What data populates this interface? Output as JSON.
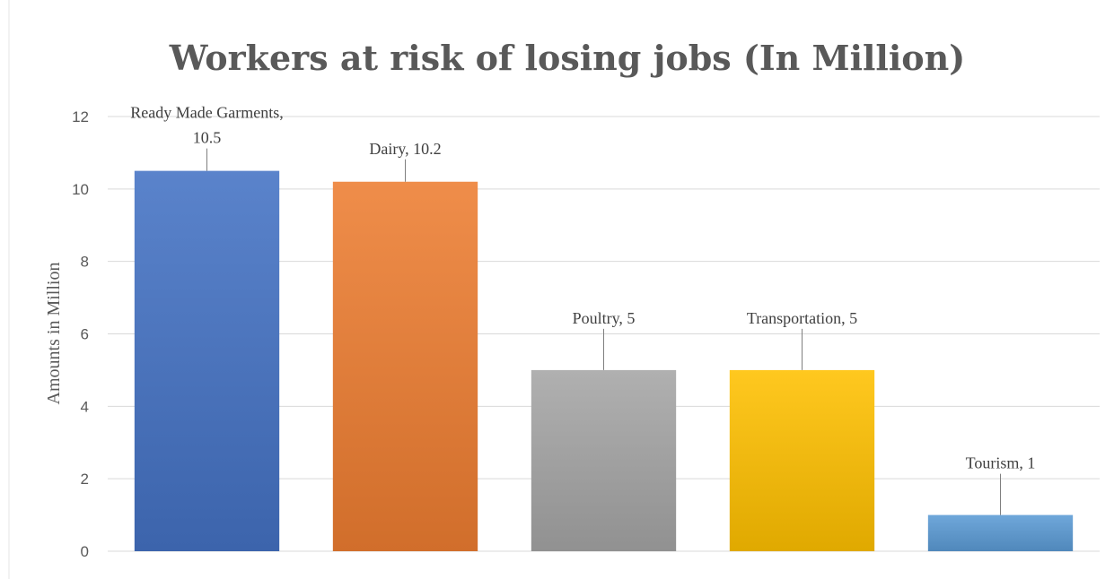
{
  "chart_data": {
    "type": "bar",
    "title": "Workers at risk of losing jobs (In Million)",
    "xlabel": "",
    "ylabel": "Amounts in Million",
    "ylim": [
      0,
      12
    ],
    "yticks": [
      0,
      2,
      4,
      6,
      8,
      10,
      12
    ],
    "grid": true,
    "legend": "none",
    "categories": [
      "Ready Made Garments",
      "Dairy",
      "Poultry",
      "Transportation",
      "Tourism"
    ],
    "values": [
      10.5,
      10.2,
      5,
      5,
      1
    ],
    "data_labels": [
      "Ready Made Garments, 10.5",
      "Dairy, 10.2",
      "Poultry, 5",
      "Transportation, 5",
      "Tourism, 1"
    ],
    "colors": [
      "#4472c4",
      "#ed7d31",
      "#a5a5a5",
      "#ffc000",
      "#5b9bd5"
    ]
  }
}
